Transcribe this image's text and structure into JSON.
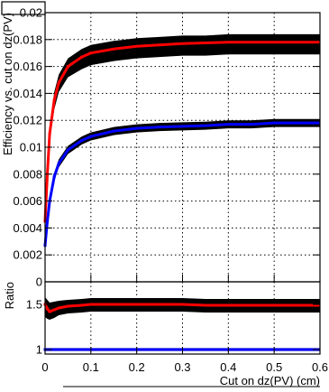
{
  "chart_data": [
    {
      "type": "line",
      "panel": "top",
      "ylabel": "Efficiency vs. cut on dz(PV)",
      "ylim": [
        0,
        0.02
      ],
      "y_ticks": [
        "0",
        "0.002",
        "0.004",
        "0.006",
        "0.008",
        "0.01",
        "0.012",
        "0.014",
        "0.016",
        "0.018",
        "0.02"
      ],
      "grid": true,
      "x": [
        0,
        0.005,
        0.01,
        0.02,
        0.03,
        0.05,
        0.08,
        0.1,
        0.15,
        0.2,
        0.25,
        0.3,
        0.35,
        0.4,
        0.45,
        0.5,
        0.55,
        0.6
      ],
      "series": [
        {
          "color": "#ff0000",
          "band_color": "#000000",
          "values": [
            0.0045,
            0.008,
            0.011,
            0.0135,
            0.0148,
            0.016,
            0.0167,
            0.017,
            0.0173,
            0.0175,
            0.0176,
            0.0177,
            0.01775,
            0.0178,
            0.0178,
            0.0178,
            0.0178,
            0.0178
          ],
          "band_lower": [
            0.0042,
            0.0075,
            0.0104,
            0.0128,
            0.0141,
            0.0152,
            0.0158,
            0.0161,
            0.0164,
            0.0166,
            0.0167,
            0.0168,
            0.0168,
            0.0169,
            0.0169,
            0.0169,
            0.0169,
            0.0169
          ],
          "band_upper": [
            0.0048,
            0.0085,
            0.0116,
            0.0141,
            0.0154,
            0.0166,
            0.0173,
            0.0176,
            0.0179,
            0.0181,
            0.0182,
            0.0183,
            0.0183,
            0.0184,
            0.0184,
            0.0184,
            0.0184,
            0.0184
          ]
        },
        {
          "color": "#0000ff",
          "band_color": "#000000",
          "values": [
            0.0027,
            0.0045,
            0.006,
            0.0078,
            0.0088,
            0.0098,
            0.0105,
            0.0108,
            0.0112,
            0.0114,
            0.0115,
            0.01155,
            0.0116,
            0.0117,
            0.0117,
            0.0118,
            0.0118,
            0.0118
          ],
          "band_lower": [
            0.0025,
            0.0042,
            0.0057,
            0.0075,
            0.0085,
            0.0095,
            0.0102,
            0.0105,
            0.0109,
            0.0111,
            0.0112,
            0.01125,
            0.0113,
            0.0114,
            0.0114,
            0.0115,
            0.0115,
            0.0115
          ],
          "band_upper": [
            0.0029,
            0.0048,
            0.0063,
            0.0081,
            0.0091,
            0.0101,
            0.0108,
            0.0111,
            0.0115,
            0.0117,
            0.0118,
            0.01185,
            0.0119,
            0.012,
            0.012,
            0.0121,
            0.0121,
            0.0121
          ]
        }
      ]
    },
    {
      "type": "line",
      "panel": "bottom",
      "ylabel": "Ratio",
      "xlabel": "Cut on dz(PV) (cm)",
      "xlim": [
        0,
        0.6
      ],
      "x_ticks": [
        "0",
        "0.1",
        "0.2",
        "0.3",
        "0.4",
        "0.5",
        "0.6"
      ],
      "ylim": [
        0.95,
        1.75
      ],
      "y_ticks": [
        "1",
        "1.5"
      ],
      "grid": true,
      "x": [
        0,
        0.005,
        0.01,
        0.02,
        0.03,
        0.05,
        0.08,
        0.1,
        0.15,
        0.2,
        0.25,
        0.3,
        0.35,
        0.4,
        0.45,
        0.5,
        0.55,
        0.6
      ],
      "series": [
        {
          "color": "#ff0000",
          "band_color": "#000000",
          "values": [
            1.5,
            1.45,
            1.42,
            1.44,
            1.46,
            1.48,
            1.49,
            1.5,
            1.5,
            1.5,
            1.5,
            1.5,
            1.49,
            1.49,
            1.49,
            1.49,
            1.49,
            1.49
          ],
          "band_lower": [
            1.36,
            1.34,
            1.33,
            1.35,
            1.38,
            1.4,
            1.41,
            1.42,
            1.42,
            1.42,
            1.42,
            1.42,
            1.41,
            1.41,
            1.41,
            1.41,
            1.41,
            1.41
          ],
          "band_upper": [
            1.58,
            1.55,
            1.52,
            1.53,
            1.54,
            1.55,
            1.56,
            1.57,
            1.57,
            1.57,
            1.57,
            1.57,
            1.56,
            1.56,
            1.56,
            1.56,
            1.56,
            1.56
          ]
        },
        {
          "color": "#0000ff",
          "band_color": "#cccccc",
          "values": [
            1.0,
            1.0,
            1.0,
            1.0,
            1.0,
            1.0,
            1.0,
            1.0,
            1.0,
            1.0,
            1.0,
            1.0,
            1.0,
            1.0,
            1.0,
            1.0,
            1.0,
            1.0
          ],
          "band_lower": [
            0.98,
            0.98,
            0.98,
            0.98,
            0.98,
            0.98,
            0.98,
            0.98,
            0.98,
            0.98,
            0.98,
            0.98,
            0.98,
            0.98,
            0.98,
            0.98,
            0.98,
            0.98
          ],
          "band_upper": [
            1.02,
            1.02,
            1.02,
            1.02,
            1.02,
            1.02,
            1.02,
            1.02,
            1.02,
            1.02,
            1.02,
            1.02,
            1.02,
            1.02,
            1.02,
            1.02,
            1.02,
            1.02
          ]
        }
      ]
    }
  ]
}
